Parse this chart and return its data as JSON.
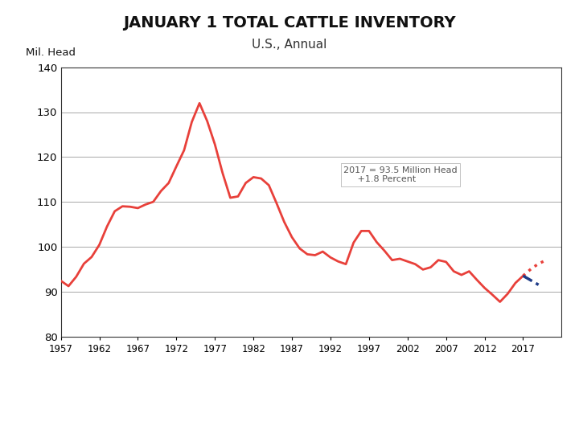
{
  "title": "JANUARY 1 TOTAL CATTLE INVENTORY",
  "subtitle": "U.S., Annual",
  "ylabel": "Mil. Head",
  "ylim": [
    80,
    140
  ],
  "yticks": [
    80,
    90,
    100,
    110,
    120,
    130,
    140
  ],
  "xlim": [
    1957,
    2022
  ],
  "xticks": [
    1957,
    1962,
    1967,
    1972,
    1977,
    1982,
    1987,
    1992,
    1997,
    2002,
    2007,
    2012,
    2017
  ],
  "annotation": "2017 = 93.5 Million Head\n     +1.8 Percent",
  "line_color": "#e8403a",
  "forecast_color": "#e8403a",
  "low_forecast_color": "#1f3c88",
  "background_color": "#ffffff",
  "footer_bg": "#b71c1c",
  "title_fontsize": 14,
  "subtitle_fontsize": 11,
  "historical_data": {
    "years": [
      1957,
      1958,
      1959,
      1960,
      1961,
      1962,
      1963,
      1964,
      1965,
      1966,
      1967,
      1968,
      1969,
      1970,
      1971,
      1972,
      1973,
      1974,
      1975,
      1976,
      1977,
      1978,
      1979,
      1980,
      1981,
      1982,
      1983,
      1984,
      1985,
      1986,
      1987,
      1988,
      1989,
      1990,
      1991,
      1992,
      1993,
      1994,
      1995,
      1996,
      1997,
      1998,
      1999,
      2000,
      2001,
      2002,
      2003,
      2004,
      2005,
      2006,
      2007,
      2008,
      2009,
      2010,
      2011,
      2012,
      2013,
      2014,
      2015,
      2016,
      2017
    ],
    "values": [
      92.4,
      91.2,
      93.3,
      96.2,
      97.7,
      100.4,
      104.5,
      107.9,
      109.0,
      108.9,
      108.6,
      109.4,
      110.0,
      112.4,
      114.2,
      117.9,
      121.5,
      127.8,
      132.0,
      128.0,
      122.8,
      116.4,
      110.9,
      111.2,
      114.2,
      115.5,
      115.2,
      113.7,
      109.7,
      105.5,
      102.1,
      99.6,
      98.3,
      98.1,
      98.9,
      97.6,
      96.7,
      96.1,
      100.9,
      103.5,
      103.5,
      101.0,
      99.1,
      97.0,
      97.3,
      96.7,
      96.1,
      94.9,
      95.4,
      97.0,
      96.6,
      94.5,
      93.7,
      94.5,
      92.6,
      90.8,
      89.3,
      87.7,
      89.5,
      91.9,
      93.5
    ]
  },
  "high_forecast": {
    "years": [
      2017,
      2018,
      2019,
      2020
    ],
    "values": [
      93.5,
      95.0,
      96.2,
      97.0
    ]
  },
  "low_forecast": {
    "years": [
      2017,
      2018,
      2019
    ],
    "values": [
      93.5,
      92.5,
      91.5
    ]
  }
}
